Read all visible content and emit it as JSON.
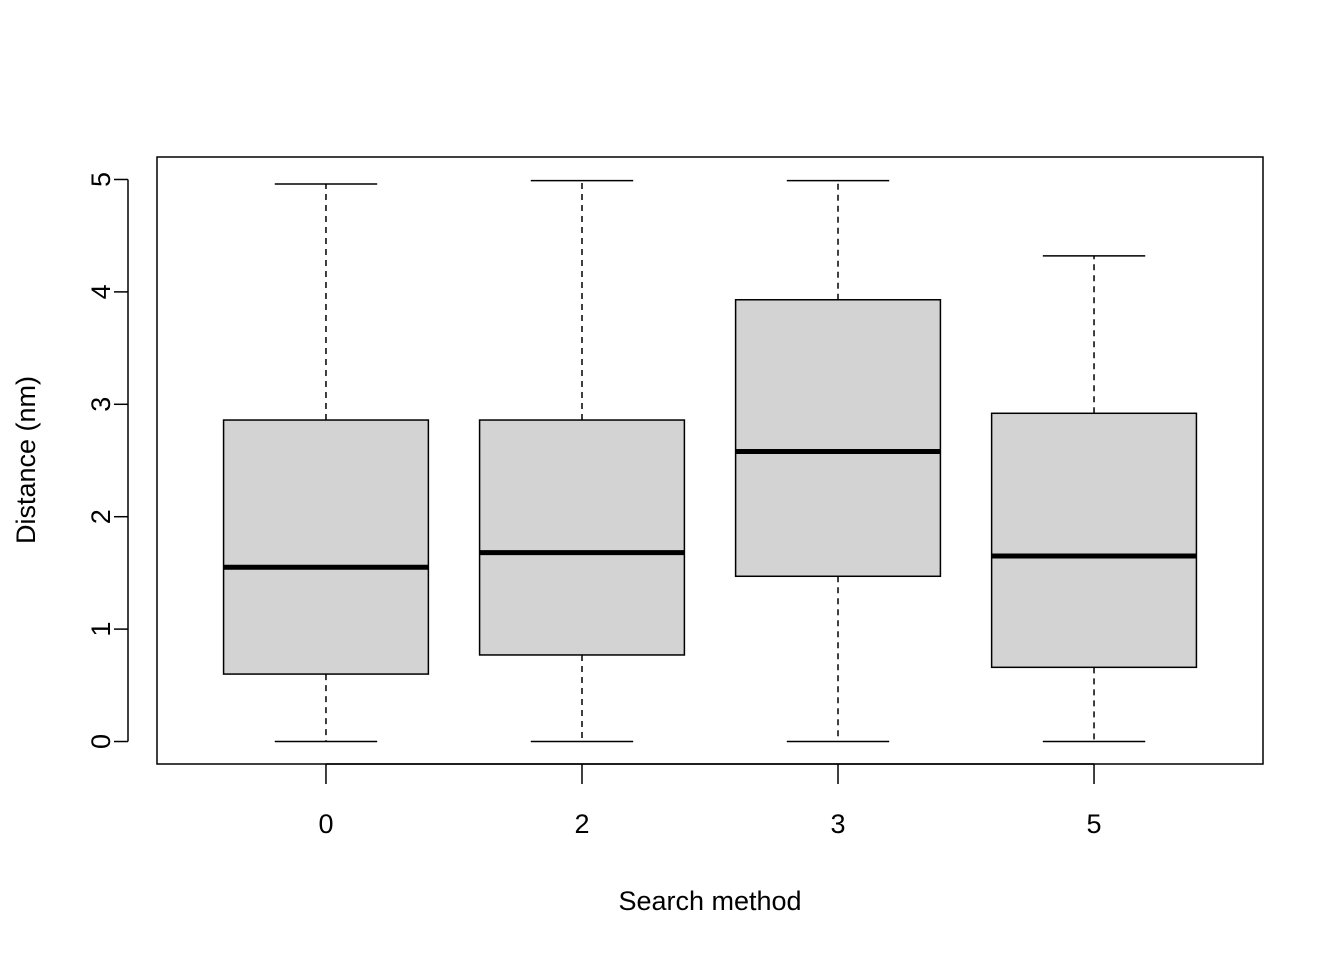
{
  "chart_data": {
    "type": "boxplot",
    "x_label": "Search method",
    "y_label": "Distance (nm)",
    "categories": [
      "0",
      "2",
      "3",
      "5"
    ],
    "min": [
      0,
      0,
      0,
      0
    ],
    "q1": [
      0.6,
      0.77,
      1.47,
      0.66
    ],
    "median": [
      1.55,
      1.68,
      2.58,
      1.65
    ],
    "q3": [
      2.86,
      2.86,
      3.93,
      2.92
    ],
    "max": [
      4.96,
      4.99,
      4.99,
      4.32
    ],
    "color": "#d3d3d3",
    "ylim": [
      -0.2,
      5.2
    ],
    "yticks": [
      0,
      1,
      2,
      3,
      4,
      5
    ]
  }
}
